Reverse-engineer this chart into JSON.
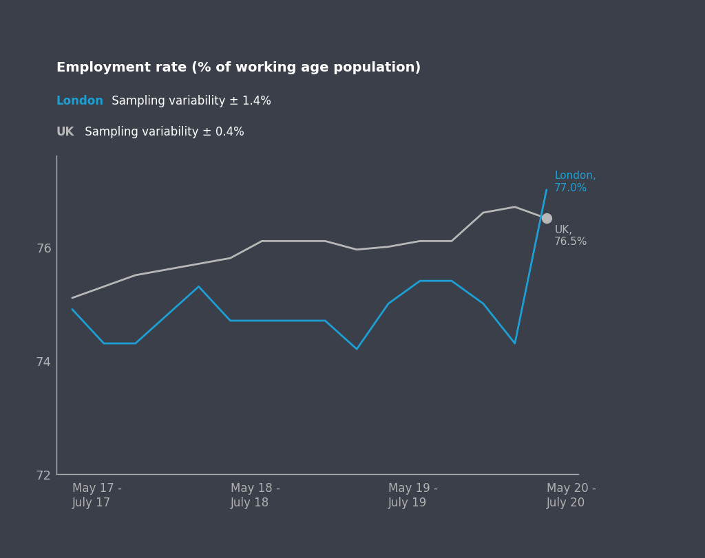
{
  "background_color": "#3a3f4a",
  "title": "Employment rate (% of working age population)",
  "title_color": "#ffffff",
  "title_fontsize": 14,
  "london_label": "London",
  "london_color": "#1e9fd4",
  "london_variability": "Sampling variability ± 1.4%",
  "uk_label": "UK",
  "uk_color": "#b8b8b8",
  "uk_variability": "Sampling variability ± 0.4%",
  "legend_text_color": "#ffffff",
  "axis_color": "#b0b0b0",
  "ylim": [
    72,
    77.6
  ],
  "yticks": [
    72,
    74,
    76
  ],
  "xtick_positions": [
    0,
    1,
    2,
    3
  ],
  "xtick_labels": [
    "May 17 -\nJuly 17",
    "May 18 -\nJuly 18",
    "May 19 -\nJuly 19",
    "May 20 -\nJuly 20"
  ],
  "london_x": [
    0,
    0.2,
    0.4,
    0.6,
    0.8,
    1.0,
    1.2,
    1.4,
    1.6,
    1.8,
    2.0,
    2.2,
    2.4,
    2.6,
    2.8,
    3.0
  ],
  "london_values": [
    74.9,
    74.3,
    74.3,
    74.8,
    75.3,
    74.7,
    74.7,
    74.7,
    74.7,
    74.2,
    75.0,
    75.4,
    75.4,
    75.0,
    74.3,
    77.0
  ],
  "uk_x": [
    0,
    0.2,
    0.4,
    0.6,
    0.8,
    1.0,
    1.2,
    1.4,
    1.6,
    1.8,
    2.0,
    2.2,
    2.4,
    2.6,
    2.8,
    3.0
  ],
  "uk_values": [
    75.1,
    75.3,
    75.5,
    75.6,
    75.7,
    75.8,
    76.1,
    76.1,
    76.1,
    75.95,
    76.0,
    76.1,
    76.1,
    76.6,
    76.7,
    76.5
  ],
  "london_end_value": "77.0%",
  "uk_end_value": "76.5%",
  "line_width": 2.0,
  "marker_size": 10,
  "figsize": [
    10.24,
    8.12
  ],
  "dpi": 100
}
